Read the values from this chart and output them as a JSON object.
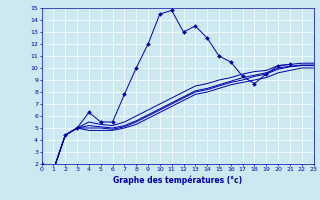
{
  "xlabel": "Graphe des températures (°c)",
  "bg_color": "#cce8f0",
  "line_color": "#0000aa",
  "grid_color": "#ffffff",
  "xmin": 0,
  "xmax": 23,
  "ymin": 2,
  "ymax": 15,
  "main_line_x": [
    0,
    1,
    2,
    3,
    4,
    5,
    6,
    7,
    8,
    9,
    10,
    11,
    12,
    13,
    14,
    15,
    16,
    17,
    18,
    19,
    20,
    21
  ],
  "main_line_y": [
    2.0,
    1.5,
    4.4,
    5.0,
    6.3,
    5.5,
    5.5,
    7.8,
    10.0,
    12.0,
    14.5,
    14.8,
    13.0,
    13.5,
    12.5,
    11.0,
    10.5,
    9.3,
    8.7,
    9.5,
    10.2,
    10.3
  ],
  "smooth_lines": [
    {
      "x": [
        0,
        1,
        2,
        3,
        4,
        5,
        6,
        7,
        8,
        9,
        10,
        11,
        12,
        13,
        14,
        15,
        16,
        17,
        18,
        19,
        20,
        21,
        22,
        23
      ],
      "y": [
        2.0,
        1.5,
        4.4,
        5.0,
        5.5,
        5.3,
        5.2,
        5.5,
        6.0,
        6.5,
        7.0,
        7.5,
        8.0,
        8.5,
        8.7,
        9.0,
        9.2,
        9.5,
        9.7,
        9.8,
        10.2,
        10.3,
        10.4,
        10.4
      ]
    },
    {
      "x": [
        0,
        1,
        2,
        3,
        4,
        5,
        6,
        7,
        8,
        9,
        10,
        11,
        12,
        13,
        14,
        15,
        16,
        17,
        18,
        19,
        20,
        21,
        22,
        23
      ],
      "y": [
        2.0,
        1.5,
        4.4,
        5.0,
        5.2,
        5.1,
        5.0,
        5.2,
        5.6,
        6.1,
        6.6,
        7.1,
        7.6,
        8.1,
        8.3,
        8.6,
        8.9,
        9.2,
        9.4,
        9.6,
        10.0,
        10.15,
        10.25,
        10.25
      ]
    },
    {
      "x": [
        0,
        1,
        2,
        3,
        4,
        5,
        6,
        7,
        8,
        9,
        10,
        11,
        12,
        13,
        14,
        15,
        16,
        17,
        18,
        19,
        20,
        21,
        22,
        23
      ],
      "y": [
        2.0,
        1.5,
        4.4,
        5.0,
        5.0,
        5.0,
        4.9,
        5.1,
        5.5,
        6.0,
        6.5,
        7.0,
        7.5,
        8.0,
        8.2,
        8.5,
        8.8,
        9.0,
        9.3,
        9.5,
        9.9,
        10.1,
        10.2,
        10.2
      ]
    },
    {
      "x": [
        0,
        1,
        2,
        3,
        4,
        5,
        6,
        7,
        8,
        9,
        10,
        11,
        12,
        13,
        14,
        15,
        16,
        17,
        18,
        19,
        20,
        21,
        22,
        23
      ],
      "y": [
        2.0,
        1.5,
        4.4,
        5.0,
        4.8,
        4.8,
        4.8,
        5.0,
        5.3,
        5.8,
        6.3,
        6.8,
        7.3,
        7.8,
        8.0,
        8.3,
        8.6,
        8.8,
        9.0,
        9.2,
        9.6,
        9.8,
        10.0,
        10.0
      ]
    }
  ]
}
